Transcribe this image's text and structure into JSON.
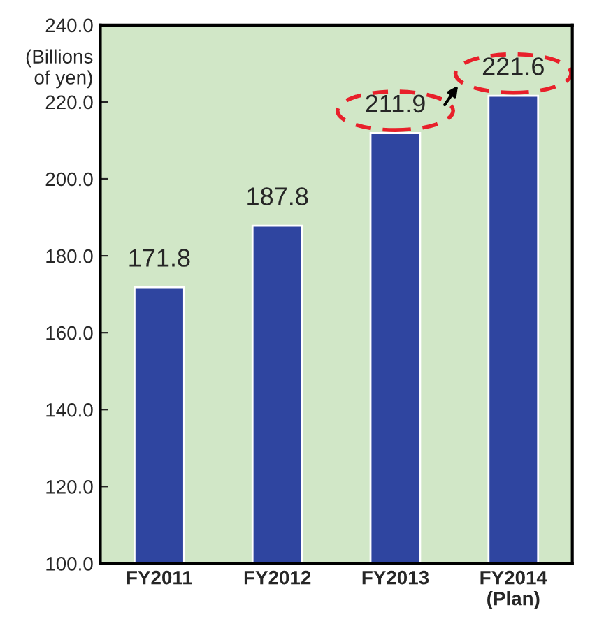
{
  "chart_data": {
    "type": "bar",
    "ylabel": "(Billions\n of yen)",
    "categories": [
      "FY2011",
      "FY2012",
      "FY2013",
      "FY2014\n(Plan)"
    ],
    "values": [
      171.8,
      187.8,
      211.9,
      221.6
    ],
    "color": "#2f45a0",
    "data_labels": true,
    "grid": false,
    "ylim": [
      100,
      240
    ],
    "yticks": [
      {
        "value": 100,
        "label": "100.0"
      },
      {
        "value": 120,
        "label": "120.0"
      },
      {
        "value": 140,
        "label": "140.0"
      },
      {
        "value": 160,
        "label": "160.0"
      },
      {
        "value": 180,
        "label": "180.0"
      },
      {
        "value": 200,
        "label": "200.0"
      },
      {
        "value": 220,
        "label": "220.0"
      },
      {
        "value": 240,
        "label": "240.0"
      }
    ]
  }
}
